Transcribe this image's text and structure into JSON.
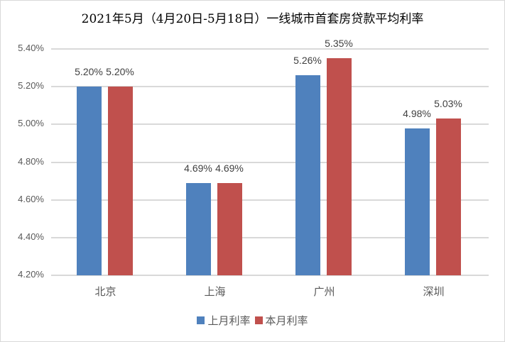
{
  "chart_data": {
    "type": "bar",
    "title": "2021年5月（4月20日-5月18日）一线城市首套房贷款平均利率",
    "xlabel": "",
    "ylabel": "",
    "categories": [
      "北京",
      "上海",
      "广州",
      "深圳"
    ],
    "series": [
      {
        "name": "上月利率",
        "color": "#4f81bd",
        "values": [
          5.2,
          4.69,
          5.26,
          4.98
        ],
        "labels": [
          "5.20%",
          "4.69%",
          "5.26%",
          "4.98%"
        ]
      },
      {
        "name": "本月利率",
        "color": "#c0504d",
        "values": [
          5.2,
          4.69,
          5.35,
          5.03
        ],
        "labels": [
          "5.20%",
          "4.69%",
          "5.35%",
          "5.03%"
        ]
      }
    ],
    "ylim": [
      4.2,
      5.4
    ],
    "yticks": [
      "5.40%",
      "5.20%",
      "5.00%",
      "4.80%",
      "4.60%",
      "4.40%",
      "4.20%"
    ],
    "grid": true,
    "legend_position": "bottom"
  }
}
